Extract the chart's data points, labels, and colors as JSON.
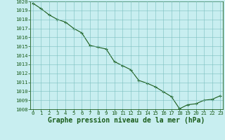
{
  "x": [
    0,
    1,
    2,
    3,
    4,
    5,
    6,
    7,
    8,
    9,
    10,
    11,
    12,
    13,
    14,
    15,
    16,
    17,
    18,
    19,
    20,
    21,
    22,
    23
  ],
  "y": [
    1019.8,
    1019.2,
    1018.5,
    1018.0,
    1017.7,
    1017.0,
    1016.5,
    1015.1,
    1014.9,
    1014.7,
    1013.3,
    1012.85,
    1012.4,
    1011.2,
    1010.9,
    1010.5,
    1009.95,
    1009.4,
    1008.05,
    1008.5,
    1008.6,
    1009.0,
    1009.1,
    1009.5
  ],
  "ylim": [
    1008,
    1020
  ],
  "xlim": [
    -0.3,
    23.3
  ],
  "yticks": [
    1008,
    1009,
    1010,
    1011,
    1012,
    1013,
    1014,
    1015,
    1016,
    1017,
    1018,
    1019,
    1020
  ],
  "xticks": [
    0,
    1,
    2,
    3,
    4,
    5,
    6,
    7,
    8,
    9,
    10,
    11,
    12,
    13,
    14,
    15,
    16,
    17,
    18,
    19,
    20,
    21,
    22,
    23
  ],
  "line_color": "#1a5c1a",
  "marker": "+",
  "marker_color": "#1a5c1a",
  "bg_color": "#c8eef0",
  "grid_color": "#7abfbf",
  "xlabel": "Graphe pression niveau de la mer (hPa)",
  "xlabel_color": "#1a5c1a",
  "tick_color": "#1a5c1a",
  "tick_label_fontsize": 5.2,
  "xlabel_fontsize": 7.0,
  "linewidth": 0.8,
  "markersize": 3.5
}
